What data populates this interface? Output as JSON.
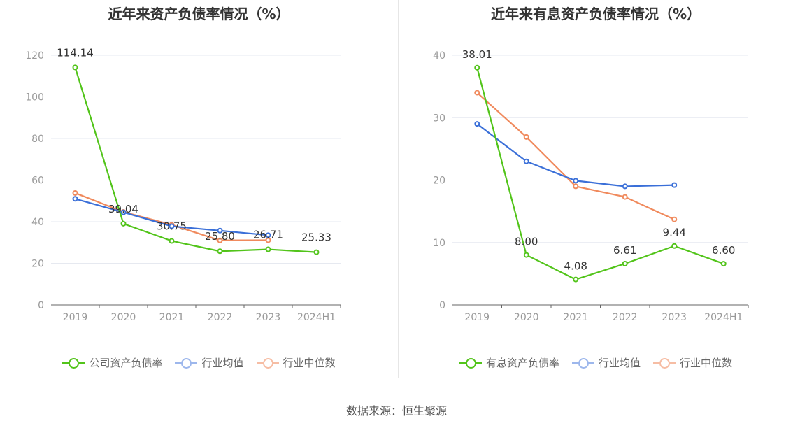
{
  "source_text": "数据来源：恒生聚源",
  "chart_data": [
    {
      "type": "line",
      "title": "近年来资产负债率情况（%）",
      "categories": [
        "2019",
        "2020",
        "2021",
        "2022",
        "2023",
        "2024H1"
      ],
      "ylim": [
        0,
        120
      ],
      "yticks": [
        0,
        20,
        40,
        60,
        80,
        100,
        120
      ],
      "grid": true,
      "legend_position": "bottom",
      "series": [
        {
          "name": "公司资产负债率",
          "color": "#52c41a",
          "values": [
            114.14,
            39.04,
            30.75,
            25.8,
            26.71,
            25.33
          ],
          "labels": [
            "114.14",
            "39.04",
            "30.75",
            "25.80",
            "26.71",
            "25.33"
          ]
        },
        {
          "name": "行业均值",
          "color": "#3a6fd8",
          "values": [
            51,
            44.5,
            37.8,
            35.7,
            33.5,
            null
          ]
        },
        {
          "name": "行业中位数",
          "color": "#f08a5d",
          "values": [
            53.8,
            44.7,
            38.5,
            31,
            31.1,
            null
          ]
        }
      ]
    },
    {
      "type": "line",
      "title": "近年来有息资产负债率情况（%）",
      "categories": [
        "2019",
        "2020",
        "2021",
        "2022",
        "2023",
        "2024H1"
      ],
      "ylim": [
        0,
        40
      ],
      "yticks": [
        0,
        10,
        20,
        30,
        40
      ],
      "grid": true,
      "legend_position": "bottom",
      "series": [
        {
          "name": "有息资产负债率",
          "color": "#52c41a",
          "values": [
            38.01,
            8.0,
            4.08,
            6.61,
            9.44,
            6.6
          ],
          "labels": [
            "38.01",
            "8.00",
            "4.08",
            "6.61",
            "9.44",
            "6.60"
          ]
        },
        {
          "name": "行业均值",
          "color": "#3a6fd8",
          "values": [
            29,
            23,
            19.9,
            19,
            19.2,
            null
          ]
        },
        {
          "name": "行业中位数",
          "color": "#f08a5d",
          "values": [
            34,
            26.9,
            19,
            17.3,
            13.7,
            null
          ]
        }
      ]
    }
  ]
}
